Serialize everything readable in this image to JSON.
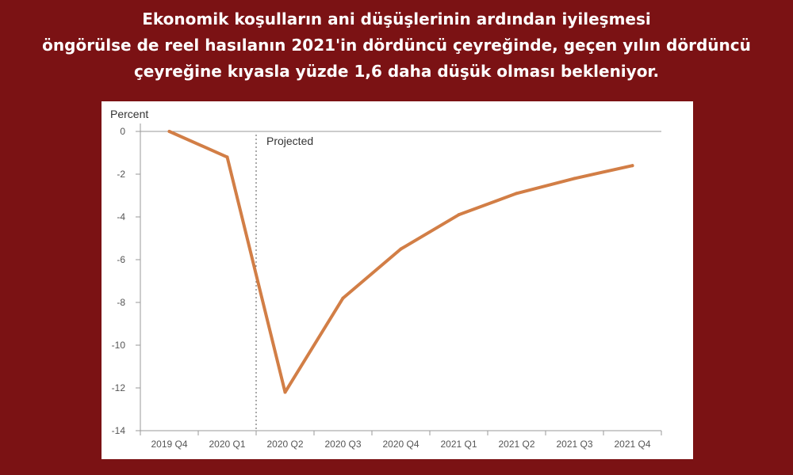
{
  "headline": {
    "lines": [
      "Ekonomik koşulların ani düşüşlerinin ardından iyileşmesi",
      "öngörülse de reel hasılanın 2021'in dördüncü çeyreğinde, geçen yılın dördüncü",
      "çeyreğine kıyasla yüzde 1,6 daha düşük olması bekleniyor."
    ]
  },
  "colors": {
    "background": "#7b1214",
    "line": "#d27e46",
    "zero_line": "#9a9a9a",
    "axis": "#9a9a9a"
  },
  "chart_data": {
    "type": "line",
    "ylabel": "Percent",
    "annotation": "Projected",
    "projection_start_between": [
      "2020 Q1",
      "2020 Q2"
    ],
    "categories": [
      "2019 Q4",
      "2020 Q1",
      "2020 Q2",
      "2020 Q3",
      "2020 Q4",
      "2021 Q1",
      "2021 Q2",
      "2021 Q3",
      "2021 Q4"
    ],
    "values": [
      0,
      -1.2,
      -12.2,
      -7.8,
      -5.5,
      -3.9,
      -2.9,
      -2.2,
      -1.6
    ],
    "ylim": [
      -14,
      0
    ],
    "yticks": [
      0,
      -2,
      -4,
      -6,
      -8,
      -10,
      -12,
      -14
    ],
    "ytick_labels": [
      "0",
      "-2",
      "-4",
      "-6",
      "-8",
      "-10",
      "-12",
      "-14"
    ],
    "grid": false,
    "legend": "none"
  }
}
